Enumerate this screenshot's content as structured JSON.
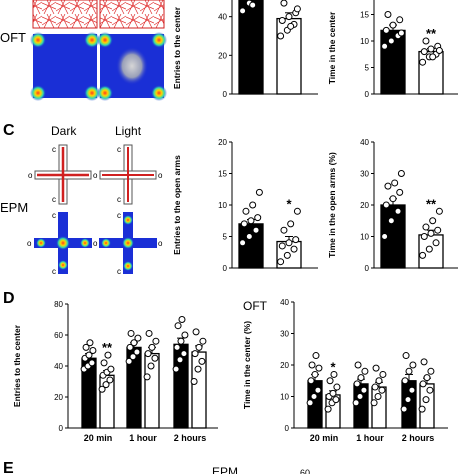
{
  "panels": {
    "oft_row": {
      "side_label": "OFT"
    },
    "c": {
      "letter": "C",
      "side_label": "EPM",
      "dark_label": "Dark",
      "light_label": "Light",
      "arm_letter_o": "o",
      "arm_letter_c": "c"
    },
    "d": {
      "letter": "D",
      "title": "OFT"
    },
    "e": {
      "letter": "E",
      "title": "EPM",
      "tick_partial": "60"
    }
  },
  "chart_data": [
    {
      "id": "oft_entries",
      "type": "bar",
      "categories": [
        "Dark",
        "Light"
      ],
      "values": [
        50,
        39
      ],
      "sem": [
        3,
        3
      ],
      "points": [
        [
          43,
          47,
          50,
          52,
          55,
          58,
          61,
          46,
          51
        ],
        [
          30,
          33,
          36,
          38,
          40,
          42,
          47,
          35,
          44
        ]
      ],
      "ylabel": "Entries to the center",
      "ylim": [
        0,
        60
      ],
      "yticks": [
        0,
        20,
        40
      ],
      "significance": "*",
      "colors": [
        "#000000",
        "#ffffff"
      ]
    },
    {
      "id": "oft_time",
      "type": "bar",
      "categories": [
        "Dark",
        "Light"
      ],
      "values": [
        12,
        8
      ],
      "sem": [
        1,
        0.6
      ],
      "points": [
        [
          9,
          10,
          11,
          12,
          13,
          14,
          15,
          19,
          11.5
        ],
        [
          6,
          7,
          7.5,
          8,
          8.5,
          9,
          10,
          7,
          8.2
        ]
      ],
      "ylabel": "Time in the center",
      "ylim": [
        0,
        20
      ],
      "yticks": [
        0,
        5,
        10,
        15
      ],
      "significance": "**",
      "colors": [
        "#000000",
        "#ffffff"
      ]
    },
    {
      "id": "epm_entries",
      "type": "bar",
      "categories": [
        "Dark",
        "Light"
      ],
      "values": [
        7,
        4.2
      ],
      "sem": [
        0.7,
        0.8
      ],
      "points": [
        [
          4,
          5,
          6,
          7,
          7.5,
          8,
          9,
          10,
          12
        ],
        [
          1,
          2,
          3,
          3.5,
          4,
          4.5,
          6,
          7,
          9
        ]
      ],
      "ylabel": "Entries to the open arms",
      "ylim": [
        0,
        20
      ],
      "yticks": [
        0,
        5,
        10,
        15,
        20
      ],
      "significance": "*",
      "colors": [
        "#000000",
        "#ffffff"
      ]
    },
    {
      "id": "epm_time",
      "type": "bar",
      "categories": [
        "Dark",
        "Light"
      ],
      "values": [
        20,
        10.5
      ],
      "sem": [
        2,
        1.5
      ],
      "points": [
        [
          10,
          15,
          18,
          20,
          22,
          24,
          26,
          27,
          30
        ],
        [
          4,
          6,
          8,
          10,
          11,
          12,
          13,
          15,
          18
        ]
      ],
      "ylabel": "Time in the open arms (%)",
      "ylim": [
        0,
        40
      ],
      "yticks": [
        0,
        10,
        20,
        30,
        40
      ],
      "significance": "**",
      "colors": [
        "#000000",
        "#ffffff"
      ]
    },
    {
      "id": "d_entries",
      "type": "bar",
      "categories": [
        "20 min",
        "1 hour",
        "2 hours"
      ],
      "series": [
        {
          "values": [
            45,
            52,
            54
          ],
          "sem": [
            3,
            3,
            4
          ],
          "points": [
            [
              38,
              40,
              42,
              45,
              47,
              50,
              52,
              55
            ],
            [
              43,
              46,
              49,
              52,
              55,
              58,
              61
            ],
            [
              38,
              44,
              48,
              52,
              56,
              60,
              66,
              70
            ]
          ]
        },
        {
          "values": [
            34,
            48,
            49
          ],
          "sem": [
            3,
            4,
            4
          ],
          "points": [
            [
              25,
              28,
              31,
              34,
              36,
              38,
              42,
              47
            ],
            [
              33,
              40,
              45,
              48,
              52,
              56,
              61
            ],
            [
              30,
              38,
              43,
              48,
              52,
              56,
              62
            ]
          ]
        }
      ],
      "ylabel": "Entries to the center",
      "ylim": [
        0,
        80
      ],
      "yticks": [
        0,
        20,
        40,
        60,
        80
      ],
      "significance": [
        "**",
        "",
        ""
      ],
      "colors": [
        "#000000",
        "#ffffff"
      ]
    },
    {
      "id": "d_time",
      "type": "bar",
      "categories": [
        "20 min",
        "1 hour",
        "2 hours"
      ],
      "series": [
        {
          "values": [
            15,
            14,
            15
          ],
          "sem": [
            2,
            1.5,
            2
          ],
          "points": [
            [
              8,
              10,
              12,
              15,
              17,
              19,
              20,
              23
            ],
            [
              8,
              10,
              12,
              14,
              16,
              18,
              20
            ],
            [
              6,
              9,
              12,
              15,
              18,
              20,
              23
            ]
          ]
        },
        {
          "values": [
            10.5,
            13,
            14
          ],
          "sem": [
            1.3,
            1.5,
            1.8
          ],
          "points": [
            [
              6,
              8,
              9,
              10,
              11,
              13,
              15,
              17
            ],
            [
              8,
              10,
              12,
              13,
              15,
              17,
              19
            ],
            [
              6,
              9,
              12,
              14,
              16,
              18,
              21
            ]
          ]
        }
      ],
      "ylabel": "Time in the center (%)",
      "ylim": [
        0,
        40
      ],
      "yticks": [
        0,
        10,
        20,
        30,
        40
      ],
      "significance": [
        "*",
        "",
        ""
      ],
      "colors": [
        "#000000",
        "#ffffff"
      ]
    }
  ]
}
